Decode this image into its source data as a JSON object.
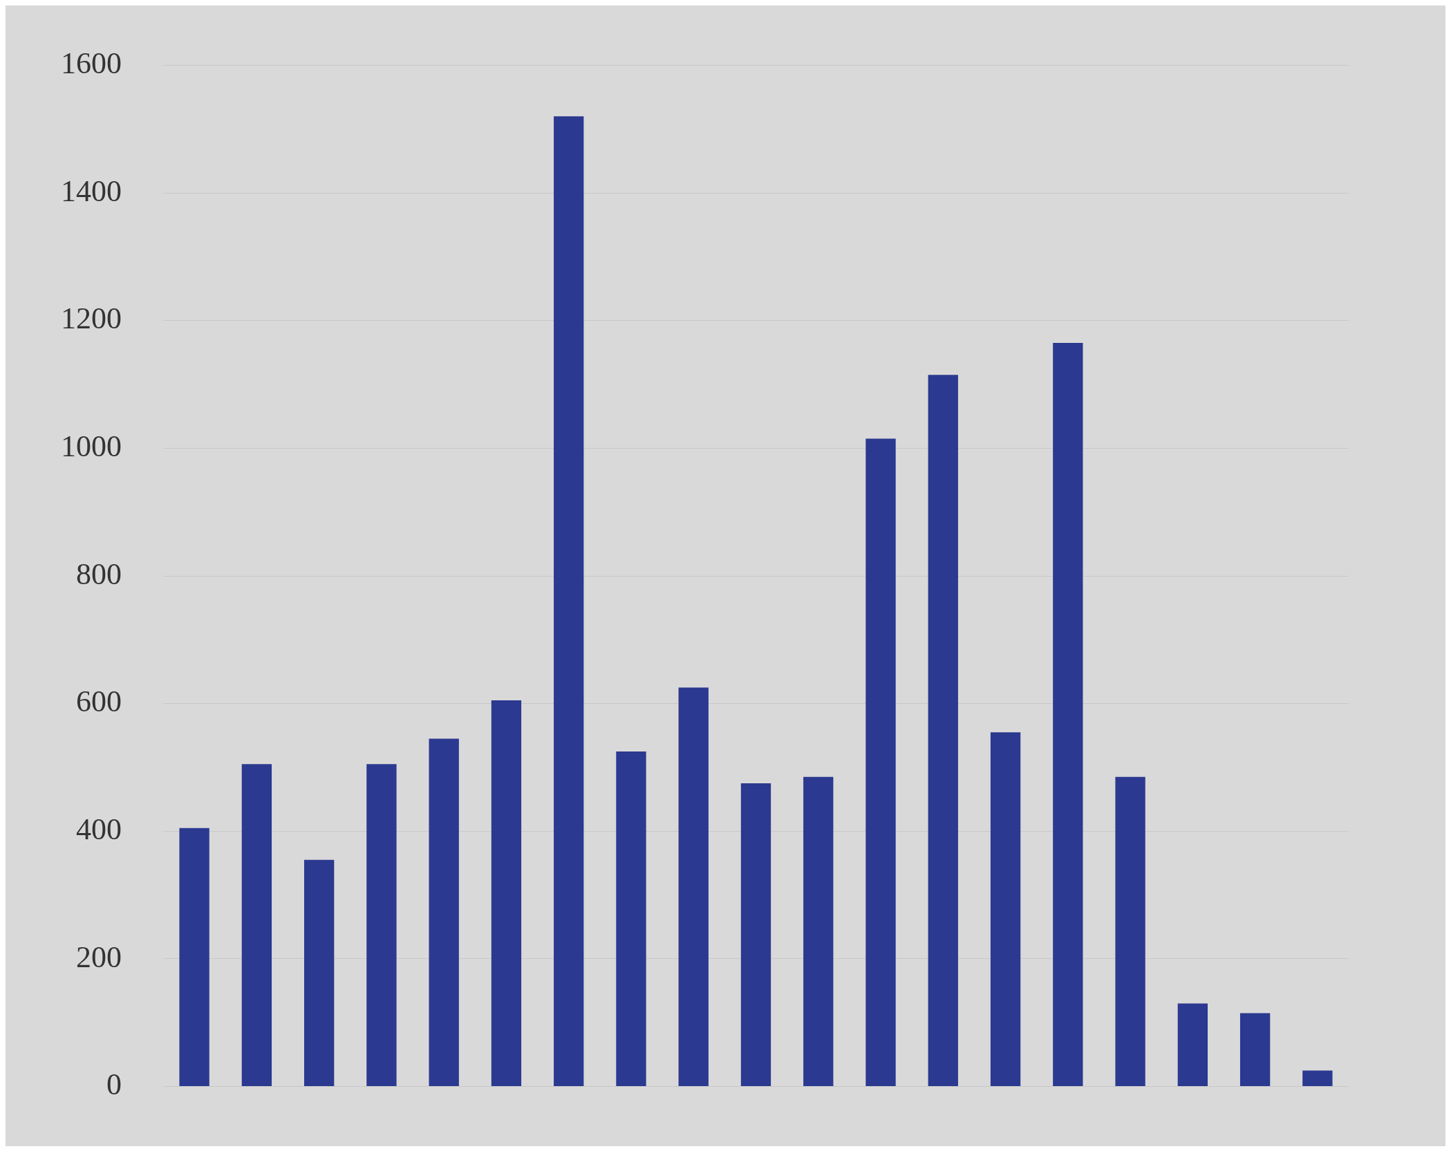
{
  "chart_data": {
    "type": "bar",
    "categories": [
      null,
      null,
      null,
      null,
      null,
      null,
      null,
      null,
      null,
      null,
      null,
      null,
      null,
      null,
      null,
      null,
      null,
      null,
      null
    ],
    "values": [
      405,
      505,
      355,
      505,
      545,
      605,
      1520,
      525,
      625,
      475,
      485,
      1015,
      1115,
      555,
      1165,
      485,
      130,
      115,
      25
    ],
    "color": "#2b3990",
    "ylim": [
      0,
      1600
    ],
    "yticks": [
      0,
      200,
      400,
      600,
      800,
      1000,
      1200,
      1400,
      1600
    ],
    "grid": "y",
    "legend": false
  }
}
